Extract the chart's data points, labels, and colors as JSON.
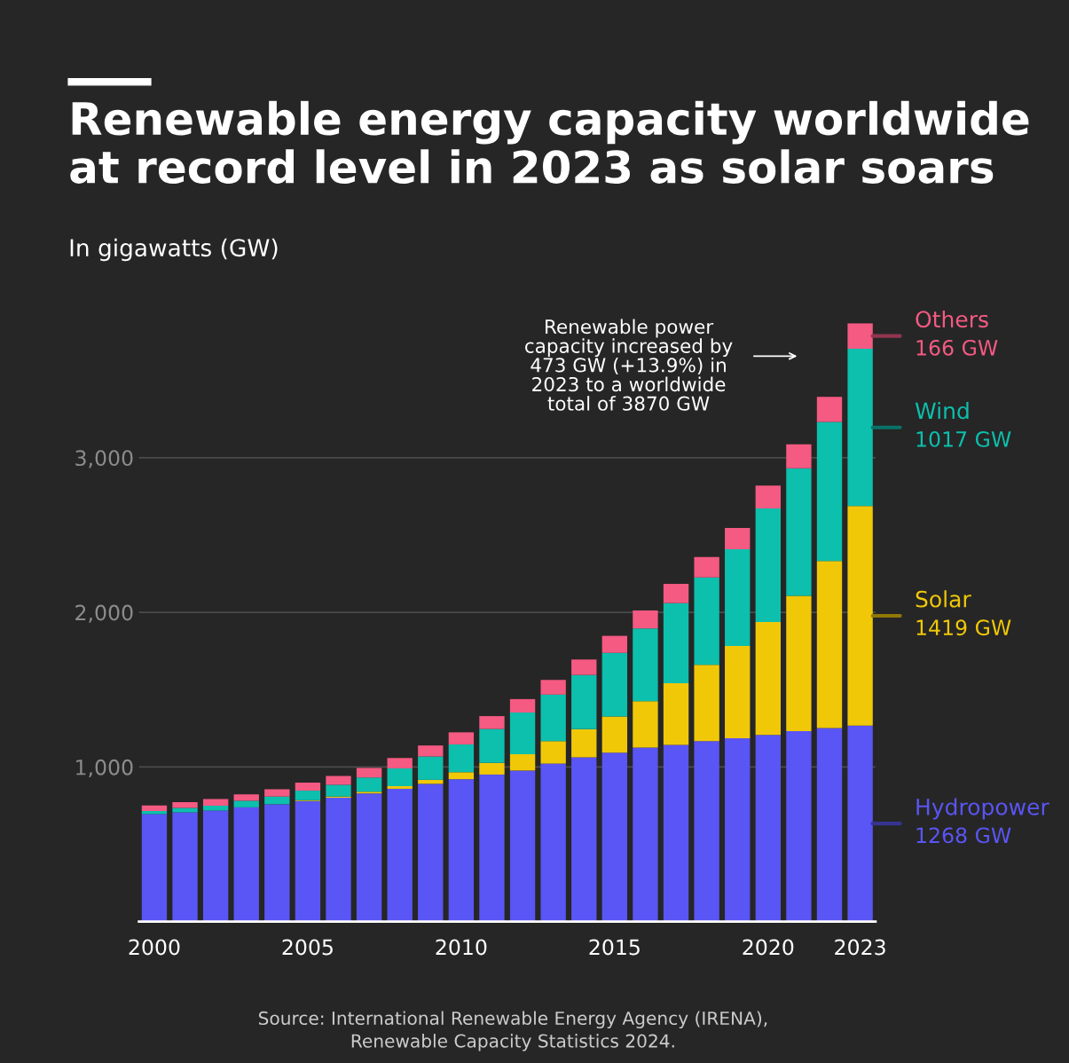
{
  "chart_data": {
    "type": "bar",
    "stacked": true,
    "title": "Renewable energy capacity worldwide\nat record level in 2023 as solar soars",
    "subtitle": "In gigawatts (GW)",
    "x": [
      2000,
      2001,
      2002,
      2003,
      2004,
      2005,
      2006,
      2007,
      2008,
      2009,
      2010,
      2011,
      2012,
      2013,
      2014,
      2015,
      2016,
      2017,
      2018,
      2019,
      2020,
      2021,
      2022,
      2023
    ],
    "xlim": [
      1999.5,
      2023.5
    ],
    "xticks": [
      2000,
      2005,
      2010,
      2015,
      2020,
      2023
    ],
    "ylim": [
      0,
      3870
    ],
    "yticks": [
      {
        "value": 1000,
        "label": "1,000"
      },
      {
        "value": 2000,
        "label": "2,000"
      },
      {
        "value": 3000,
        "label": "3,000"
      }
    ],
    "grid": "y",
    "series": [
      {
        "name": "Hydropower",
        "color": "#5a55f5",
        "values": [
          695,
          707,
          718,
          739,
          759,
          780,
          801,
          829,
          859,
          891,
          921,
          951,
          977,
          1022,
          1062,
          1093,
          1125,
          1143,
          1167,
          1186,
          1207,
          1231,
          1252,
          1268
        ],
        "value_labels": [
          null,
          null,
          null,
          null,
          null,
          null,
          null,
          null,
          null,
          null,
          null,
          null,
          null,
          null,
          null,
          null,
          null,
          null,
          null,
          null,
          null,
          null,
          null,
          "1268 GW"
        ]
      },
      {
        "name": "Solar",
        "color": "#f0c808",
        "values": [
          null,
          null,
          null,
          null,
          null,
          5,
          8,
          11,
          17,
          26,
          45,
          75,
          106,
          145,
          182,
          233,
          301,
          399,
          494,
          596,
          731,
          876,
          1080,
          1419
        ],
        "value_labels": [
          null,
          null,
          null,
          null,
          null,
          null,
          null,
          null,
          null,
          null,
          null,
          null,
          null,
          null,
          null,
          null,
          null,
          null,
          null,
          null,
          null,
          null,
          null,
          "1419 GW"
        ]
      },
      {
        "name": "Wind",
        "color": "#0dbfad",
        "values": [
          20,
          29,
          32,
          43,
          50,
          62,
          76,
          92,
          115,
          151,
          180,
          220,
          269,
          301,
          351,
          412,
          470,
          518,
          565,
          626,
          734,
          824,
          900,
          1017
        ],
        "value_labels": [
          null,
          null,
          null,
          null,
          null,
          null,
          null,
          null,
          null,
          null,
          null,
          null,
          null,
          null,
          null,
          null,
          null,
          null,
          null,
          null,
          null,
          null,
          null,
          "1017 GW"
        ]
      },
      {
        "name": "Others",
        "color": "#f45a82",
        "values": [
          36,
          37,
          43,
          41,
          47,
          52,
          57,
          62,
          67,
          71,
          78,
          83,
          87,
          95,
          100,
          110,
          116,
          124,
          132,
          138,
          148,
          156,
          161,
          166
        ],
        "value_labels": [
          null,
          null,
          null,
          null,
          null,
          null,
          null,
          null,
          null,
          null,
          null,
          null,
          null,
          null,
          null,
          null,
          null,
          null,
          null,
          null,
          null,
          null,
          null,
          "166 GW"
        ]
      }
    ],
    "annotations": [
      "Renewable power\ncapacity increased by\n473 GW (+13.9%) in\n2023 to a worldwide\ntotal of 3870 GW",
      "Source: International Renewable Energy Agency (IRENA),\nRenewable Capacity Statistics 2024."
    ]
  }
}
